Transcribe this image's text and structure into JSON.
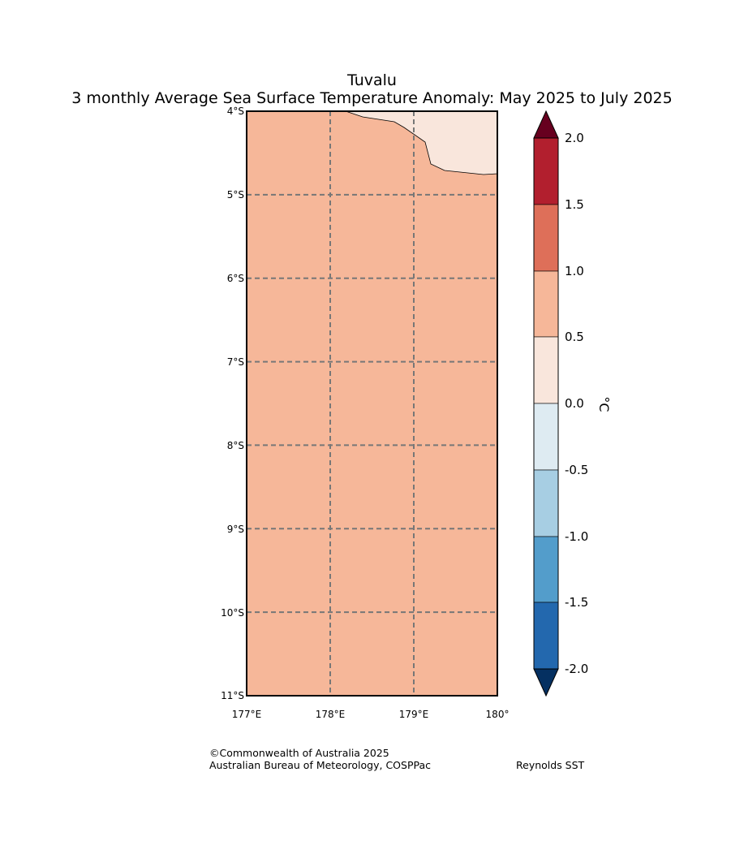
{
  "title": {
    "line1": "Tuvalu",
    "line2": "3 monthly Average Sea Surface Temperature Anomaly: May 2025 to July 2025"
  },
  "map": {
    "lat_labels": [
      "4°S",
      "5°S",
      "6°S",
      "7°S",
      "8°S",
      "9°S",
      "10°S",
      "11°S"
    ],
    "lon_labels": [
      "177°E",
      "178°E",
      "179°E",
      "180°"
    ],
    "lat_range": [
      -11,
      -4
    ],
    "lon_range": [
      177,
      180
    ],
    "background_color": "#f6b799",
    "region_color": "#f9e6dc"
  },
  "colorbar": {
    "unit_label": "°C",
    "tick_labels": [
      "2.0",
      "1.5",
      "1.0",
      "0.5",
      "0.0",
      "-0.5",
      "-1.0",
      "-1.5",
      "-2.0"
    ],
    "bins": [
      {
        "from": 1.5,
        "to": 2.0,
        "color": "#b21f2e"
      },
      {
        "from": 1.0,
        "to": 1.5,
        "color": "#de6f59"
      },
      {
        "from": 0.5,
        "to": 1.0,
        "color": "#f6b799"
      },
      {
        "from": 0.0,
        "to": 0.5,
        "color": "#f9e6dc"
      },
      {
        "from": -0.5,
        "to": 0.0,
        "color": "#deebf2"
      },
      {
        "from": -1.0,
        "to": -0.5,
        "color": "#a7cee3"
      },
      {
        "from": -1.5,
        "to": -1.0,
        "color": "#539dcb"
      },
      {
        "from": -2.0,
        "to": -1.5,
        "color": "#2368ae"
      }
    ],
    "over_color": "#67001f",
    "under_color": "#053061"
  },
  "credits": {
    "copyright": "©Commonwealth of Australia 2025",
    "agency": "Australian Bureau of Meteorology, COSPPac",
    "source": "Reynolds SST"
  }
}
